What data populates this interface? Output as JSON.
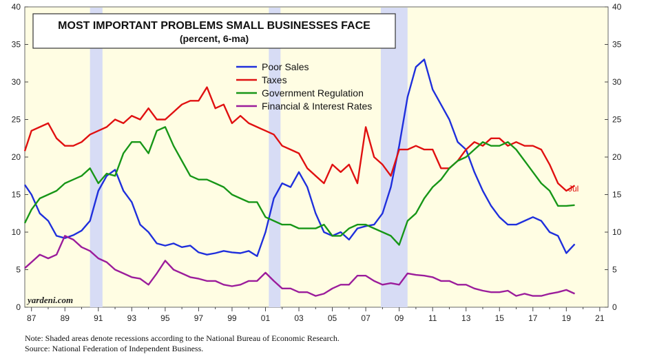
{
  "chart_data": {
    "type": "line",
    "title": "MOST IMPORTANT PROBLEMS SMALL BUSINESSES FACE",
    "subtitle": "(percent, 6-ma)",
    "xlabel": "",
    "ylabel": "",
    "xlim": [
      1986.6,
      2021.5
    ],
    "ylim": [
      0,
      40
    ],
    "x_ticks": [
      {
        "value": 1987,
        "label": "87"
      },
      {
        "value": 1989,
        "label": "89"
      },
      {
        "value": 1991,
        "label": "91"
      },
      {
        "value": 1993,
        "label": "93"
      },
      {
        "value": 1995,
        "label": "95"
      },
      {
        "value": 1997,
        "label": "97"
      },
      {
        "value": 1999,
        "label": "99"
      },
      {
        "value": 2001,
        "label": "01"
      },
      {
        "value": 2003,
        "label": "03"
      },
      {
        "value": 2005,
        "label": "05"
      },
      {
        "value": 2007,
        "label": "07"
      },
      {
        "value": 2009,
        "label": "09"
      },
      {
        "value": 2011,
        "label": "11"
      },
      {
        "value": 2013,
        "label": "13"
      },
      {
        "value": 2015,
        "label": "15"
      },
      {
        "value": 2017,
        "label": "17"
      },
      {
        "value": 2019,
        "label": "19"
      },
      {
        "value": 2021,
        "label": "21"
      }
    ],
    "y_ticks": [
      0,
      5,
      10,
      15,
      20,
      25,
      30,
      35,
      40
    ],
    "recessions": [
      [
        1990.5,
        1991.25
      ],
      [
        2001.2,
        2001.9
      ],
      [
        2007.9,
        2009.5
      ]
    ],
    "annotation": "Jul",
    "watermark": "yardeni.com",
    "series": [
      {
        "name": "Poor Sales",
        "color": "#1f2fdc",
        "x": [
          1986.6,
          1987.0,
          1987.5,
          1988.0,
          1988.5,
          1989.0,
          1989.5,
          1990.0,
          1990.5,
          1991.0,
          1991.5,
          1992.0,
          1992.5,
          1993.0,
          1993.5,
          1994.0,
          1994.5,
          1995.0,
          1995.5,
          1996.0,
          1996.5,
          1997.0,
          1997.5,
          1998.0,
          1998.5,
          1999.0,
          1999.5,
          2000.0,
          2000.5,
          2001.0,
          2001.5,
          2002.0,
          2002.5,
          2003.0,
          2003.5,
          2004.0,
          2004.5,
          2005.0,
          2005.5,
          2006.0,
          2006.5,
          2007.0,
          2007.5,
          2008.0,
          2008.5,
          2009.0,
          2009.5,
          2010.0,
          2010.5,
          2011.0,
          2011.5,
          2012.0,
          2012.5,
          2013.0,
          2013.5,
          2014.0,
          2014.5,
          2015.0,
          2015.5,
          2016.0,
          2016.5,
          2017.0,
          2017.5,
          2018.0,
          2018.5,
          2019.0,
          2019.5
        ],
        "values": [
          16.3,
          15.0,
          12.5,
          11.5,
          9.5,
          9.2,
          9.6,
          10.2,
          11.5,
          15.5,
          17.5,
          18.3,
          15.5,
          14.0,
          11.0,
          10.0,
          8.5,
          8.2,
          8.5,
          8.0,
          8.2,
          7.3,
          7.0,
          7.2,
          7.5,
          7.3,
          7.2,
          7.5,
          6.8,
          10.0,
          14.5,
          16.5,
          16.0,
          18.0,
          16.0,
          12.5,
          10.0,
          9.5,
          10.0,
          9.0,
          10.5,
          10.8,
          11.0,
          12.5,
          16.0,
          21.5,
          28.0,
          32.0,
          33.0,
          29.0,
          27.0,
          25.0,
          22.0,
          21.0,
          18.0,
          15.5,
          13.5,
          12.0,
          11.0,
          11.0,
          11.5,
          12.0,
          11.5,
          10.0,
          9.5,
          7.2,
          8.4
        ]
      },
      {
        "name": "Taxes",
        "color": "#e01010",
        "x": [
          1986.6,
          1987.0,
          1987.5,
          1988.0,
          1988.5,
          1989.0,
          1989.5,
          1990.0,
          1990.5,
          1991.0,
          1991.5,
          1992.0,
          1992.5,
          1993.0,
          1993.5,
          1994.0,
          1994.5,
          1995.0,
          1995.5,
          1996.0,
          1996.5,
          1997.0,
          1997.5,
          1998.0,
          1998.5,
          1999.0,
          1999.5,
          2000.0,
          2000.5,
          2001.0,
          2001.5,
          2002.0,
          2002.5,
          2003.0,
          2003.5,
          2004.0,
          2004.5,
          2005.0,
          2005.5,
          2006.0,
          2006.5,
          2007.0,
          2007.5,
          2008.0,
          2008.5,
          2009.0,
          2009.5,
          2010.0,
          2010.5,
          2011.0,
          2011.5,
          2012.0,
          2012.5,
          2013.0,
          2013.5,
          2014.0,
          2014.5,
          2015.0,
          2015.5,
          2016.0,
          2016.5,
          2017.0,
          2017.5,
          2018.0,
          2018.5,
          2019.0,
          2019.5
        ],
        "values": [
          20.8,
          23.5,
          24.0,
          24.5,
          22.5,
          21.5,
          21.5,
          22.0,
          23.0,
          23.5,
          24.0,
          25.0,
          24.5,
          25.5,
          25.0,
          26.5,
          25.0,
          25.0,
          26.0,
          27.0,
          27.5,
          27.5,
          29.3,
          26.5,
          27.0,
          24.5,
          25.5,
          24.5,
          24.0,
          23.5,
          23.0,
          21.5,
          21.0,
          20.5,
          18.5,
          17.5,
          16.5,
          19.0,
          18.0,
          19.0,
          16.5,
          24.0,
          20.0,
          19.0,
          17.5,
          21.0,
          21.0,
          21.5,
          21.0,
          21.0,
          18.5,
          18.5,
          19.5,
          21.0,
          22.0,
          21.5,
          22.5,
          22.5,
          21.5,
          22.0,
          21.5,
          21.5,
          21.0,
          19.0,
          16.5,
          15.5,
          16.2
        ]
      },
      {
        "name": "Government Regulation",
        "color": "#179617",
        "x": [
          1986.6,
          1987.0,
          1987.5,
          1988.0,
          1988.5,
          1989.0,
          1989.5,
          1990.0,
          1990.5,
          1991.0,
          1991.5,
          1992.0,
          1992.5,
          1993.0,
          1993.5,
          1994.0,
          1994.5,
          1995.0,
          1995.5,
          1996.0,
          1996.5,
          1997.0,
          1997.5,
          1998.0,
          1998.5,
          1999.0,
          1999.5,
          2000.0,
          2000.5,
          2001.0,
          2001.5,
          2002.0,
          2002.5,
          2003.0,
          2003.5,
          2004.0,
          2004.5,
          2005.0,
          2005.5,
          2006.0,
          2006.5,
          2007.0,
          2007.5,
          2008.0,
          2008.5,
          2009.0,
          2009.5,
          2010.0,
          2010.5,
          2011.0,
          2011.5,
          2012.0,
          2012.5,
          2013.0,
          2013.5,
          2014.0,
          2014.5,
          2015.0,
          2015.5,
          2016.0,
          2016.5,
          2017.0,
          2017.5,
          2018.0,
          2018.5,
          2019.0,
          2019.5
        ],
        "values": [
          11.2,
          13.0,
          14.5,
          15.0,
          15.5,
          16.5,
          17.0,
          17.5,
          18.5,
          16.5,
          17.8,
          17.5,
          20.5,
          22.0,
          22.0,
          20.5,
          23.5,
          24.0,
          21.5,
          19.5,
          17.5,
          17.0,
          17.0,
          16.5,
          16.0,
          15.0,
          14.5,
          14.0,
          14.0,
          12.0,
          11.5,
          11.0,
          11.0,
          10.5,
          10.5,
          10.5,
          11.0,
          9.5,
          9.5,
          10.5,
          11.0,
          11.0,
          10.5,
          10.0,
          9.5,
          8.3,
          11.5,
          12.5,
          14.5,
          16.0,
          17.0,
          18.5,
          19.5,
          20.0,
          21.0,
          22.0,
          21.5,
          21.5,
          22.0,
          21.0,
          19.5,
          18.0,
          16.5,
          15.5,
          13.5,
          13.5,
          13.6
        ]
      },
      {
        "name": "Financial & Interest Rates",
        "color": "#9b1c9b",
        "x": [
          1986.6,
          1987.0,
          1987.5,
          1988.0,
          1988.5,
          1989.0,
          1989.5,
          1990.0,
          1990.5,
          1991.0,
          1991.5,
          1992.0,
          1992.5,
          1993.0,
          1993.5,
          1994.0,
          1994.5,
          1995.0,
          1995.5,
          1996.0,
          1996.5,
          1997.0,
          1997.5,
          1998.0,
          1998.5,
          1999.0,
          1999.5,
          2000.0,
          2000.5,
          2001.0,
          2001.5,
          2002.0,
          2002.5,
          2003.0,
          2003.5,
          2004.0,
          2004.5,
          2005.0,
          2005.5,
          2006.0,
          2006.5,
          2007.0,
          2007.5,
          2008.0,
          2008.5,
          2009.0,
          2009.5,
          2010.0,
          2010.5,
          2011.0,
          2011.5,
          2012.0,
          2012.5,
          2013.0,
          2013.5,
          2014.0,
          2014.5,
          2015.0,
          2015.5,
          2016.0,
          2016.5,
          2017.0,
          2017.5,
          2018.0,
          2018.5,
          2019.0,
          2019.5
        ],
        "values": [
          5.2,
          6.0,
          7.0,
          6.5,
          7.0,
          9.5,
          9.0,
          8.0,
          7.5,
          6.5,
          6.0,
          5.0,
          4.5,
          4.0,
          3.8,
          3.0,
          4.5,
          6.2,
          5.0,
          4.5,
          4.0,
          3.8,
          3.5,
          3.5,
          3.0,
          2.8,
          3.0,
          3.5,
          3.5,
          4.6,
          3.5,
          2.5,
          2.5,
          2.0,
          2.0,
          1.5,
          1.8,
          2.5,
          3.0,
          3.0,
          4.2,
          4.2,
          3.5,
          3.0,
          3.2,
          3.0,
          4.5,
          4.3,
          4.2,
          4.0,
          3.5,
          3.5,
          3.0,
          3.0,
          2.5,
          2.2,
          2.0,
          2.0,
          2.2,
          1.5,
          1.8,
          1.5,
          1.5,
          1.8,
          2.0,
          2.3,
          1.8
        ]
      }
    ]
  },
  "notes": {
    "line1": "Note: Shaded areas denote recessions according to the National Bureau of Economic Research.",
    "line2": "Source: National Federation of Independent Business."
  }
}
